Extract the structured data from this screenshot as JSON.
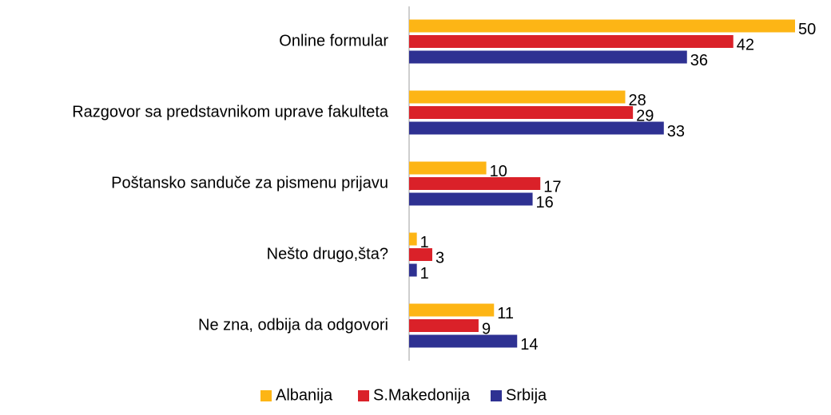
{
  "chart_data": {
    "type": "bar",
    "orientation": "horizontal",
    "categories": [
      "Online formular",
      "Razgovor sa predstavnikom uprave fakulteta",
      "Poštansko sanduče za pismenu prijavu",
      "Nešto drugo,šta?",
      "Ne zna, odbija da odgovori"
    ],
    "series": [
      {
        "name": "Albanija",
        "color": "#fdb515",
        "values": [
          50,
          28,
          10,
          1,
          11
        ]
      },
      {
        "name": "S.Makedonija",
        "color": "#da2129",
        "values": [
          42,
          29,
          17,
          3,
          9
        ]
      },
      {
        "name": "Srbija",
        "color": "#2e3192",
        "values": [
          36,
          33,
          16,
          1,
          14
        ]
      }
    ],
    "xlim": [
      0,
      50
    ],
    "legend": "bottom"
  }
}
